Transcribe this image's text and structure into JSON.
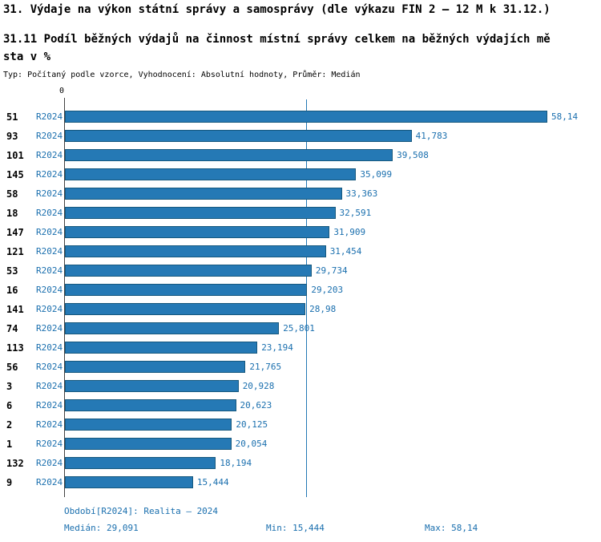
{
  "title": "31. Výdaje na výkon státní správy a samosprávy (dle výkazu FIN 2 – 12 M k 31.12.)",
  "subtitle_line1": "31.11 Podíl běžných výdajů na činnost místní správy celkem na běžných výdajích mě",
  "subtitle_line2": "sta v %",
  "meta": "Typ: Počítaný podle vzorce, Vyhodnocení: Absolutní hodnoty, Průměr: Medián",
  "axis": {
    "zero_label": "0"
  },
  "chart_data": {
    "type": "bar",
    "orientation": "horizontal",
    "series_label": "R2024",
    "categories": [
      "51",
      "93",
      "101",
      "145",
      "58",
      "18",
      "147",
      "121",
      "53",
      "16",
      "141",
      "74",
      "113",
      "56",
      "3",
      "6",
      "2",
      "1",
      "132",
      "9"
    ],
    "values": [
      58.14,
      41.783,
      39.508,
      35.099,
      33.363,
      32.591,
      31.909,
      31.454,
      29.734,
      29.203,
      28.98,
      25.801,
      23.194,
      21.765,
      20.928,
      20.623,
      20.125,
      20.054,
      18.194,
      15.444
    ],
    "value_labels": [
      "58,14",
      "41,783",
      "39,508",
      "35,099",
      "33,363",
      "32,591",
      "31,909",
      "31,454",
      "29,734",
      "29,203",
      "28,98",
      "25,801",
      "23,194",
      "21,765",
      "20,928",
      "20,623",
      "20,125",
      "20,054",
      "18,194",
      "15,444"
    ],
    "xlim": [
      0,
      60
    ],
    "median": 29.091,
    "grid": false,
    "legend_position": "none",
    "bar_color": "#2579b5",
    "bar_border_color": "#16587e",
    "label_color": "#1a6fae"
  },
  "footer": {
    "period": "Období[R2024]: Realita – 2024",
    "median": "Medián: 29,091",
    "min": "Min: 15,444",
    "max": "Max: 58,14"
  }
}
